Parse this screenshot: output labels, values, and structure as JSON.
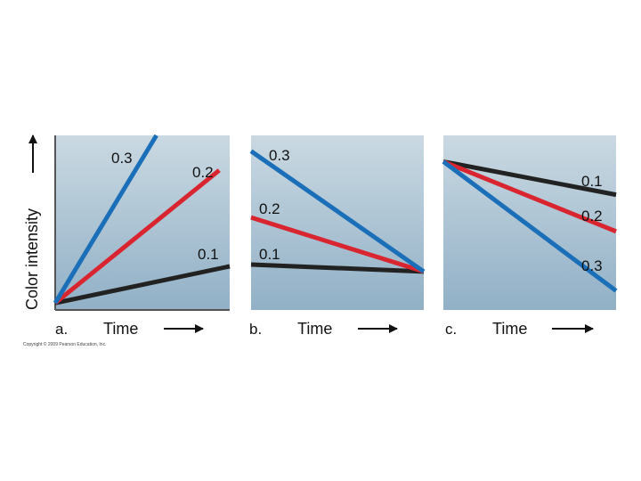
{
  "chart_data": [
    {
      "type": "line",
      "panel_label": "a.",
      "xlabel": "Time",
      "ylabel": "Color intensity",
      "series": [
        {
          "name": "0.3",
          "color": "#1a6fb8",
          "points": [
            [
              0,
              0.04
            ],
            [
              0.58,
              1.0
            ]
          ]
        },
        {
          "name": "0.2",
          "color": "#d9252f",
          "points": [
            [
              0,
              0.04
            ],
            [
              0.94,
              0.8
            ]
          ]
        },
        {
          "name": "0.1",
          "color": "#222222",
          "points": [
            [
              0,
              0.04
            ],
            [
              1.0,
              0.25
            ]
          ]
        }
      ]
    },
    {
      "type": "line",
      "panel_label": "b.",
      "xlabel": "Time",
      "series": [
        {
          "name": "0.3",
          "color": "#1a6fb8",
          "points": [
            [
              0,
              0.91
            ],
            [
              1.0,
              0.22
            ]
          ]
        },
        {
          "name": "0.2",
          "color": "#d9252f",
          "points": [
            [
              0,
              0.53
            ],
            [
              1.0,
              0.22
            ]
          ]
        },
        {
          "name": "0.1",
          "color": "#222222",
          "points": [
            [
              0,
              0.26
            ],
            [
              1.0,
              0.22
            ]
          ]
        }
      ]
    },
    {
      "type": "line",
      "panel_label": "c.",
      "xlabel": "Time",
      "series": [
        {
          "name": "0.1",
          "color": "#222222",
          "points": [
            [
              0,
              0.85
            ],
            [
              1.0,
              0.66
            ]
          ]
        },
        {
          "name": "0.2",
          "color": "#d9252f",
          "points": [
            [
              0,
              0.85
            ],
            [
              1.0,
              0.45
            ]
          ]
        },
        {
          "name": "0.3",
          "color": "#1a6fb8",
          "points": [
            [
              0,
              0.85
            ],
            [
              1.0,
              0.11
            ]
          ]
        }
      ]
    }
  ],
  "copyright": "Copyright © 2009 Pearson Education, Inc."
}
